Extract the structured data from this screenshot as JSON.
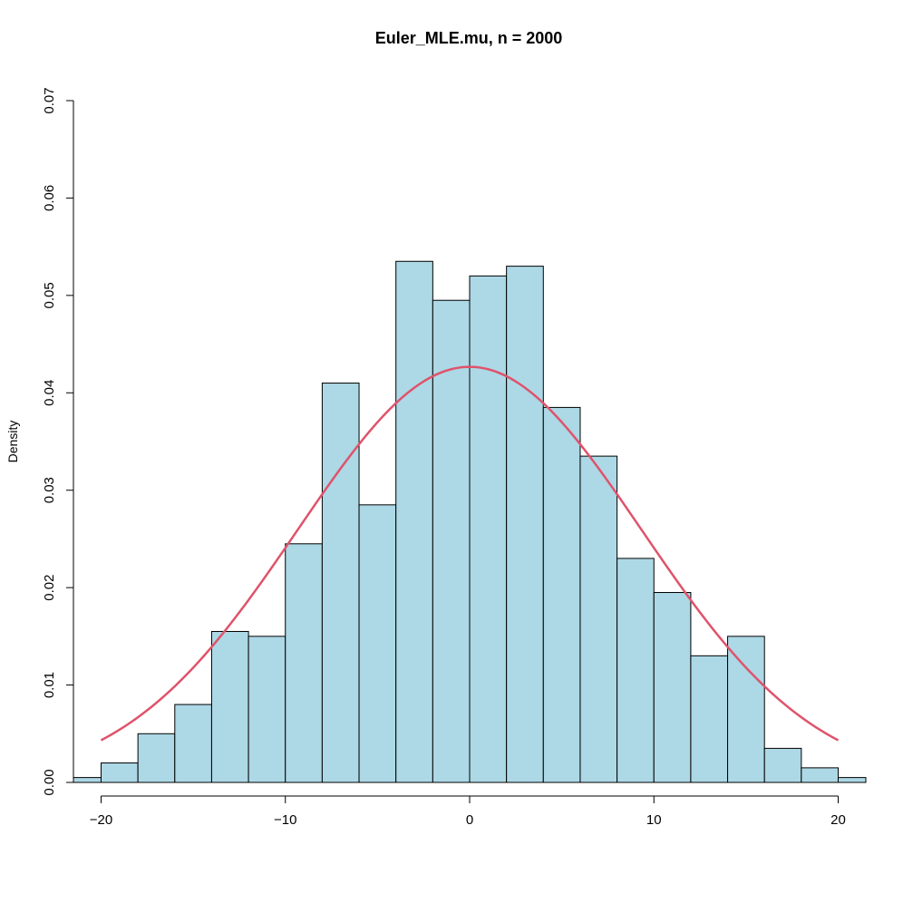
{
  "chart_data": {
    "type": "bar",
    "title": "Euler_MLE.mu, n = 2000",
    "xlabel": "",
    "ylabel": "Density",
    "xlim": [
      -21.5,
      21.5
    ],
    "ylim": [
      0,
      0.07
    ],
    "x_ticks": [
      -20,
      -10,
      0,
      10,
      20
    ],
    "x_tick_labels": [
      "−20",
      "−10",
      "0",
      "10",
      "20"
    ],
    "y_ticks": [
      0,
      0.01,
      0.02,
      0.03,
      0.04,
      0.05,
      0.06,
      0.07
    ],
    "y_tick_labels": [
      "0.00",
      "0.01",
      "0.02",
      "0.03",
      "0.04",
      "0.05",
      "0.06",
      "0.07"
    ],
    "bin_edges": [
      -22,
      -20,
      -18,
      -16,
      -14,
      -12,
      -10,
      -8,
      -6,
      -4,
      -2,
      0,
      2,
      4,
      6,
      8,
      10,
      12,
      14,
      16,
      18,
      20,
      22
    ],
    "density": [
      0.0005,
      0.002,
      0.005,
      0.008,
      0.0155,
      0.015,
      0.0245,
      0.041,
      0.0285,
      0.0535,
      0.0495,
      0.052,
      0.053,
      0.0385,
      0.0335,
      0.023,
      0.0195,
      0.013,
      0.015,
      0.0035,
      0.0015,
      0.0005
    ],
    "bar_fill": "#add8e6",
    "overlay": {
      "type": "normal-density-curve",
      "mean": 0,
      "sd": 9.35,
      "x_range": [
        -20,
        20
      ],
      "color": "#df536b"
    },
    "grid": false
  }
}
